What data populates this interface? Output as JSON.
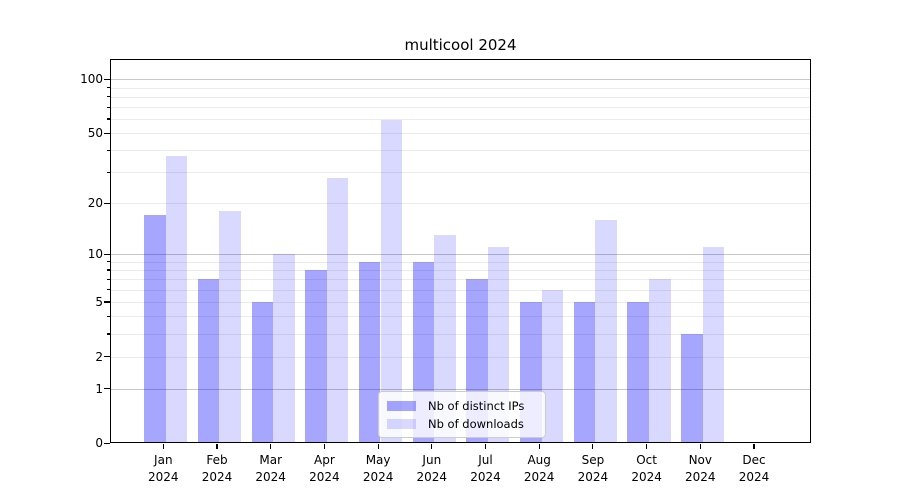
{
  "title": "multicool 2024",
  "chart_data": {
    "type": "bar",
    "title": "multicool 2024",
    "categories": [
      "Jan",
      "Feb",
      "Mar",
      "Apr",
      "May",
      "Jun",
      "Jul",
      "Aug",
      "Sep",
      "Oct",
      "Nov",
      "Dec"
    ],
    "year_label": "2024",
    "series": [
      {
        "name": "Nb of distinct IPs",
        "color": "rgba(0,0,255,0.35)",
        "values": [
          17,
          7,
          5,
          8,
          9,
          9,
          7,
          5,
          5,
          5,
          3,
          0
        ]
      },
      {
        "name": "Nb of downloads",
        "color": "rgba(0,0,255,0.15)",
        "values": [
          37,
          18,
          10,
          28,
          59,
          13,
          11,
          6,
          16,
          7,
          11,
          0
        ]
      }
    ],
    "yscale": "log1p",
    "ylim": [
      0,
      130
    ],
    "xlabel": "",
    "ylabel": "",
    "yticks_labeled": [
      {
        "value": 100,
        "label": "100"
      },
      {
        "value": 50,
        "label": "50"
      },
      {
        "value": 20,
        "label": "20"
      },
      {
        "value": 10,
        "label": "10"
      },
      {
        "value": 5,
        "label": "5"
      },
      {
        "value": 2,
        "label": "2"
      },
      {
        "value": 1,
        "label": "1"
      },
      {
        "value": 0,
        "label": "0"
      }
    ],
    "grid_major": [
      1,
      10,
      100
    ],
    "grid_minor": [
      2,
      3,
      4,
      5,
      6,
      7,
      8,
      9,
      20,
      30,
      40,
      50,
      60,
      70,
      80,
      90
    ],
    "grid": "on",
    "legend_position": "inside lower center"
  }
}
